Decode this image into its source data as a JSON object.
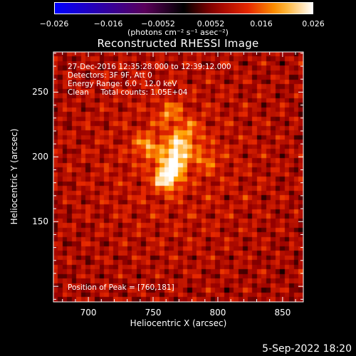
{
  "colorbar": {
    "ticks": [
      "−0.026",
      "−0.016",
      "−0.0052",
      "0.0052",
      "0.016",
      "0.026"
    ],
    "units": "(photons cm⁻² s⁻¹ asec⁻²)",
    "min": -0.026,
    "max": 0.026
  },
  "annotation": {
    "time": "27-Dec-2016 12:35:28.000 to 12:39:12.000",
    "detectors": "Detectors: 3F 9F, Att 0",
    "energy": "Energy Range: 6.0 - 12.0 keV",
    "clean": "Clean     Total counts: 1.05E+04",
    "peak": "Position of Peak = [760,181]"
  },
  "footer": {
    "date": "5-Sep-2022 18:20"
  },
  "chart_data": {
    "type": "heatmap",
    "title": "Reconstructed RHESSI Image",
    "xlabel": "Heliocentric X (arcsec)",
    "ylabel": "Heliocentric Y (arcsec)",
    "xlim": [
      673,
      866
    ],
    "ylim": [
      88,
      281
    ],
    "xticks": [
      700,
      750,
      800,
      850
    ],
    "yticks": [
      150,
      200,
      250
    ],
    "peak": [
      760,
      181
    ],
    "sources": [
      {
        "x": 761,
        "y": 184,
        "intensity": 1.0
      },
      {
        "x": 767,
        "y": 197,
        "intensity": 0.8
      },
      {
        "x": 770,
        "y": 210,
        "intensity": 0.65
      },
      {
        "x": 746,
        "y": 208,
        "intensity": 0.55
      },
      {
        "x": 763,
        "y": 233,
        "intensity": 0.45
      },
      {
        "x": 791,
        "y": 198,
        "intensity": 0.35
      },
      {
        "x": 780,
        "y": 220,
        "intensity": 0.3
      }
    ]
  }
}
